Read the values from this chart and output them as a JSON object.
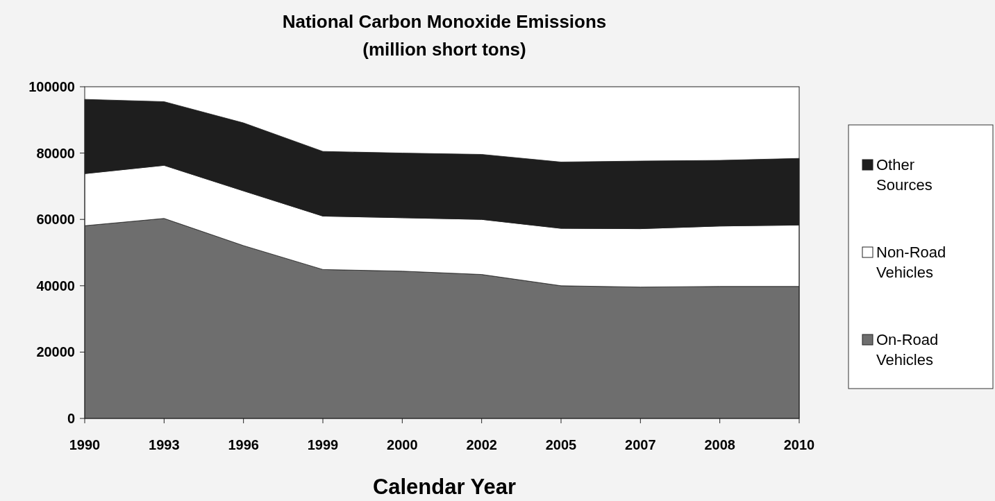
{
  "chart_data": {
    "type": "area",
    "title": "National Carbon Monoxide Emissions",
    "subtitle": "(million short tons)",
    "xlabel": "Calendar Year",
    "categories": [
      "1990",
      "1993",
      "1996",
      "1999",
      "2000",
      "2002",
      "2005",
      "2007",
      "2008",
      "2010"
    ],
    "stacked": true,
    "ylim": [
      0,
      100000
    ],
    "yticks": [
      0,
      20000,
      40000,
      60000,
      80000,
      100000
    ],
    "grid": false,
    "legend": "right",
    "series": [
      {
        "name": "On-Road Vehicles",
        "color": "#6e6e6e",
        "values": [
          58100,
          60300,
          52100,
          44900,
          44400,
          43400,
          40000,
          39600,
          39800,
          39800
        ]
      },
      {
        "name": "Non-Road Vehicles",
        "color": "#ffffff",
        "values": [
          15700,
          16000,
          16500,
          16100,
          16100,
          16600,
          17300,
          17600,
          18200,
          18500
        ]
      },
      {
        "name": "Other Sources",
        "color": "#1e1e1e",
        "values": [
          22400,
          19200,
          20500,
          19500,
          19500,
          19600,
          20000,
          20400,
          19800,
          20100
        ]
      }
    ]
  }
}
